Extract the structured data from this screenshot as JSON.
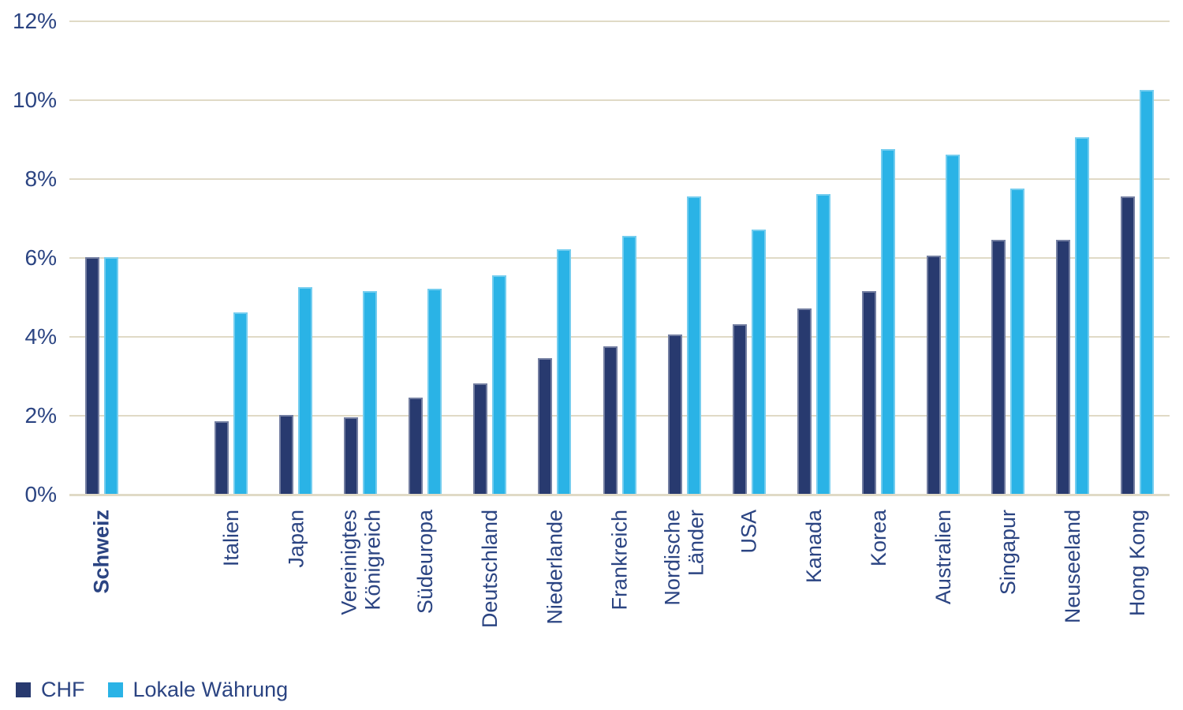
{
  "chart_data": {
    "type": "bar",
    "title": "",
    "categories": [
      "Schweiz",
      "Italien",
      "Japan",
      "Vereinigtes\nKönigreich",
      "Südeuropa",
      "Deutschland",
      "Niederlande",
      "Frankreich",
      "Nordische\nLänder",
      "USA",
      "Kanada",
      "Korea",
      "Australien",
      "Singapur",
      "Neuseeland",
      "Hong Kong"
    ],
    "bold_category": "Schweiz",
    "gap_after_first_category": true,
    "series": [
      {
        "name": "CHF",
        "color": "#283A6F",
        "values": [
          6.0,
          1.85,
          2.0,
          1.95,
          2.45,
          2.8,
          3.45,
          3.75,
          4.05,
          4.3,
          4.7,
          5.15,
          6.05,
          6.45,
          6.45,
          7.55
        ]
      },
      {
        "name": "Lokale Währung",
        "color": "#2AB3E6",
        "values": [
          6.0,
          4.6,
          5.25,
          5.15,
          5.2,
          5.55,
          6.2,
          6.55,
          7.55,
          6.7,
          7.6,
          8.75,
          8.6,
          7.75,
          9.05,
          10.25
        ]
      }
    ],
    "yticks": [
      "12%",
      "10%",
      "8%",
      "6%",
      "4%",
      "2%",
      "0%"
    ],
    "ytick_values": [
      12,
      10,
      8,
      6,
      4,
      2,
      0
    ],
    "ylim": [
      0,
      12
    ],
    "grid": true,
    "grid_color": "#E0DAC6",
    "axis_text_color": "#2B4482",
    "legend_position": "bottom-left"
  }
}
